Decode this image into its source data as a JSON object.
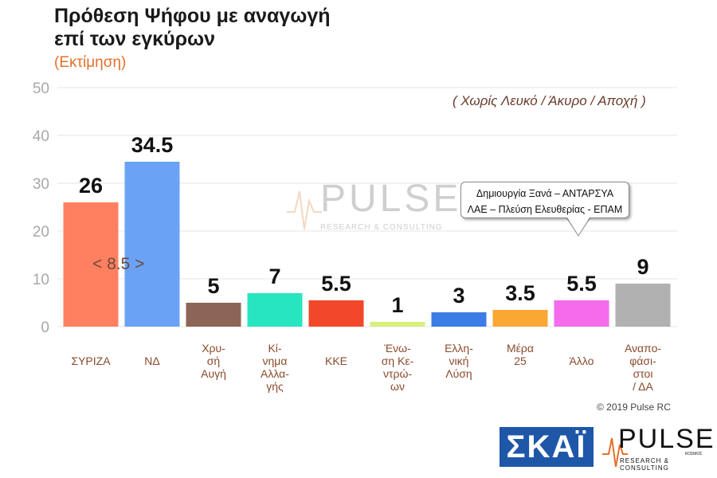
{
  "header": {
    "title_line1": "Πρόθεση Ψήφου με αναγωγή",
    "title_line2": "επί των εγκύρων",
    "subtitle": "(Εκτίμηση)",
    "note": "( Χωρίς Λευκό / Άκυρο / Αποχή )"
  },
  "annotation": {
    "difference_label": "< 8.5 >"
  },
  "callout": {
    "line1": "Δημιουργία Ξανά – ΑΝΤΑΡΣΥΑ",
    "line2": "ΛΑΕ – Πλεύση Ελευθερίας - ΕΠΑΜ"
  },
  "watermark": {
    "word": "PULSE",
    "sub": "RESEARCH & CONSULTING"
  },
  "footer": {
    "copyright": "© 2019 Pulse RC",
    "skai_logo": "ΣΚΑΪ",
    "pulse_logo_word": "PULSE",
    "pulse_logo_sub": "RESEARCH & CONSULTING",
    "pulse_logo_kosmos": "ΚΟΣΜΟΣ"
  },
  "chart_data": {
    "type": "bar",
    "categories": [
      "ΣΥΡΙΖΑ",
      "ΝΔ",
      "Χρυ-\nσή\nΑυγή",
      "Κί-\nνημα\nΑλλα-\nγής",
      "ΚΚΕ",
      "Ένω-\nση Κε-\nντρώ-\nων",
      "Ελλη-\nνική\nΛύση",
      "Μέρα\n25",
      "Άλλο",
      "Αναπο-\nφάσι-\nστοι\n/ ΔΑ"
    ],
    "values": [
      26,
      34.5,
      5,
      7,
      5.5,
      1,
      3,
      3.5,
      5.5,
      9
    ],
    "value_labels": [
      "26",
      "34.5",
      "5",
      "7",
      "5.5",
      "1",
      "3",
      "3.5",
      "5.5",
      "9"
    ],
    "colors": [
      "#ff8060",
      "#6aa3f5",
      "#8c6556",
      "#27e6bf",
      "#f2472b",
      "#d6f07c",
      "#3b7ce6",
      "#fba733",
      "#f46bec",
      "#b1b1b1"
    ],
    "y_ticks": [
      "0",
      "10",
      "20",
      "30",
      "40",
      "50"
    ],
    "ylim": [
      0,
      50
    ],
    "grid": true
  }
}
